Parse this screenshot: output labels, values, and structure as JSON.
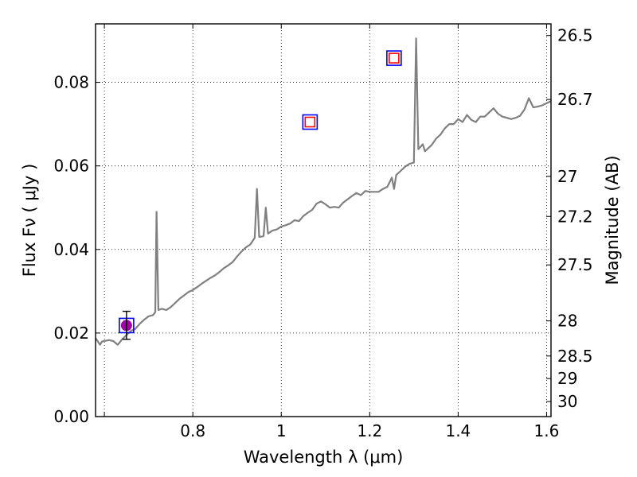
{
  "chart_data": {
    "type": "line",
    "xlabel": "Wavelength  λ (μm)",
    "ylabel": "Flux  Fν  ( μJy )",
    "ylabel_right": "Magnitude (AB)",
    "xlim": [
      0.58,
      1.61
    ],
    "ylim": [
      0.0,
      0.094
    ],
    "grid": true,
    "x_ticks": [
      {
        "value": 0.6,
        "label": ""
      },
      {
        "value": 0.8,
        "label": "0.8"
      },
      {
        "value": 1.0,
        "label": "1"
      },
      {
        "value": 1.2,
        "label": "1.2"
      },
      {
        "value": 1.4,
        "label": "1.4"
      },
      {
        "value": 1.6,
        "label": "1.6"
      }
    ],
    "y_ticks": [
      {
        "value": 0.0,
        "label": "0.00"
      },
      {
        "value": 0.02,
        "label": "0.02"
      },
      {
        "value": 0.04,
        "label": "0.04"
      },
      {
        "value": 0.06,
        "label": "0.06"
      },
      {
        "value": 0.08,
        "label": "0.08"
      }
    ],
    "right_ticks": [
      {
        "label": "26.5",
        "flux": 0.0912
      },
      {
        "label": "26.7",
        "flux": 0.0759
      },
      {
        "label": "27",
        "flux": 0.0575
      },
      {
        "label": "27.2",
        "flux": 0.0479
      },
      {
        "label": "27.5",
        "flux": 0.0363
      },
      {
        "label": "28",
        "flux": 0.0229
      },
      {
        "label": "28.5",
        "flux": 0.0145
      },
      {
        "label": "29",
        "flux": 0.0091
      },
      {
        "label": "30",
        "flux": 0.0036
      }
    ],
    "series": [
      {
        "type": "line",
        "color": "#808080",
        "points": [
          [
            0.58,
            0.0188
          ],
          [
            0.59,
            0.0172
          ],
          [
            0.595,
            0.018
          ],
          [
            0.61,
            0.0183
          ],
          [
            0.62,
            0.0181
          ],
          [
            0.63,
            0.0172
          ],
          [
            0.635,
            0.0178
          ],
          [
            0.64,
            0.0185
          ],
          [
            0.65,
            0.0195
          ],
          [
            0.66,
            0.0205
          ],
          [
            0.67,
            0.021
          ],
          [
            0.68,
            0.0222
          ],
          [
            0.69,
            0.0232
          ],
          [
            0.7,
            0.024
          ],
          [
            0.71,
            0.0243
          ],
          [
            0.715,
            0.025
          ],
          [
            0.718,
            0.049
          ],
          [
            0.722,
            0.0255
          ],
          [
            0.73,
            0.0258
          ],
          [
            0.74,
            0.0255
          ],
          [
            0.75,
            0.0262
          ],
          [
            0.76,
            0.0272
          ],
          [
            0.77,
            0.0282
          ],
          [
            0.78,
            0.029
          ],
          [
            0.79,
            0.0298
          ],
          [
            0.8,
            0.0303
          ],
          [
            0.81,
            0.031
          ],
          [
            0.82,
            0.0318
          ],
          [
            0.83,
            0.0325
          ],
          [
            0.84,
            0.0332
          ],
          [
            0.85,
            0.0338
          ],
          [
            0.86,
            0.0346
          ],
          [
            0.87,
            0.0355
          ],
          [
            0.88,
            0.0362
          ],
          [
            0.89,
            0.037
          ],
          [
            0.9,
            0.0383
          ],
          [
            0.91,
            0.0395
          ],
          [
            0.92,
            0.0405
          ],
          [
            0.93,
            0.0412
          ],
          [
            0.94,
            0.0428
          ],
          [
            0.945,
            0.0545
          ],
          [
            0.95,
            0.043
          ],
          [
            0.96,
            0.0432
          ],
          [
            0.965,
            0.05
          ],
          [
            0.97,
            0.0438
          ],
          [
            0.98,
            0.0445
          ],
          [
            0.99,
            0.0448
          ],
          [
            1.0,
            0.0455
          ],
          [
            1.01,
            0.0458
          ],
          [
            1.02,
            0.0462
          ],
          [
            1.03,
            0.047
          ],
          [
            1.04,
            0.0468
          ],
          [
            1.05,
            0.048
          ],
          [
            1.06,
            0.0488
          ],
          [
            1.07,
            0.0495
          ],
          [
            1.08,
            0.051
          ],
          [
            1.09,
            0.0515
          ],
          [
            1.1,
            0.0508
          ],
          [
            1.11,
            0.05
          ],
          [
            1.12,
            0.0502
          ],
          [
            1.13,
            0.05
          ],
          [
            1.14,
            0.0512
          ],
          [
            1.15,
            0.052
          ],
          [
            1.16,
            0.0528
          ],
          [
            1.17,
            0.0535
          ],
          [
            1.18,
            0.053
          ],
          [
            1.19,
            0.054
          ],
          [
            1.2,
            0.0538
          ],
          [
            1.21,
            0.0538
          ],
          [
            1.22,
            0.0538
          ],
          [
            1.23,
            0.0545
          ],
          [
            1.24,
            0.055
          ],
          [
            1.25,
            0.0572
          ],
          [
            1.255,
            0.0545
          ],
          [
            1.26,
            0.0578
          ],
          [
            1.27,
            0.0588
          ],
          [
            1.28,
            0.0598
          ],
          [
            1.29,
            0.0605
          ],
          [
            1.3,
            0.0608
          ],
          [
            1.305,
            0.0905
          ],
          [
            1.31,
            0.064
          ],
          [
            1.32,
            0.0652
          ],
          [
            1.325,
            0.0635
          ],
          [
            1.33,
            0.064
          ],
          [
            1.34,
            0.065
          ],
          [
            1.35,
            0.0665
          ],
          [
            1.36,
            0.0675
          ],
          [
            1.37,
            0.069
          ],
          [
            1.38,
            0.07
          ],
          [
            1.39,
            0.07
          ],
          [
            1.4,
            0.0712
          ],
          [
            1.41,
            0.0705
          ],
          [
            1.42,
            0.0722
          ],
          [
            1.43,
            0.071
          ],
          [
            1.44,
            0.0705
          ],
          [
            1.45,
            0.0718
          ],
          [
            1.46,
            0.0718
          ],
          [
            1.47,
            0.0728
          ],
          [
            1.48,
            0.0738
          ],
          [
            1.49,
            0.0725
          ],
          [
            1.5,
            0.0718
          ],
          [
            1.51,
            0.0715
          ],
          [
            1.52,
            0.0712
          ],
          [
            1.53,
            0.0715
          ],
          [
            1.54,
            0.072
          ],
          [
            1.55,
            0.0735
          ],
          [
            1.56,
            0.0762
          ],
          [
            1.57,
            0.074
          ],
          [
            1.58,
            0.0742
          ],
          [
            1.59,
            0.0745
          ],
          [
            1.6,
            0.075
          ],
          [
            1.61,
            0.0755
          ]
        ]
      },
      {
        "type": "scatter",
        "marker": "open-square",
        "edge_color": "#0000ff",
        "points": [
          [
            0.65,
            0.0218
          ],
          [
            1.065,
            0.0705
          ],
          [
            1.255,
            0.0858
          ]
        ]
      },
      {
        "type": "scatter",
        "marker": "open-square",
        "edge_color": "#ff0000",
        "points": [
          [
            1.065,
            0.0705
          ],
          [
            1.255,
            0.0858
          ]
        ]
      },
      {
        "type": "scatter",
        "marker": "filled-circle",
        "color": "#a000a8",
        "points": [
          [
            0.65,
            0.0218
          ]
        ]
      },
      {
        "type": "errorbar",
        "color": "#000000",
        "points": [
          {
            "x": 0.65,
            "y": 0.0218,
            "ylow": 0.0185,
            "yhigh": 0.0252
          }
        ]
      }
    ]
  }
}
